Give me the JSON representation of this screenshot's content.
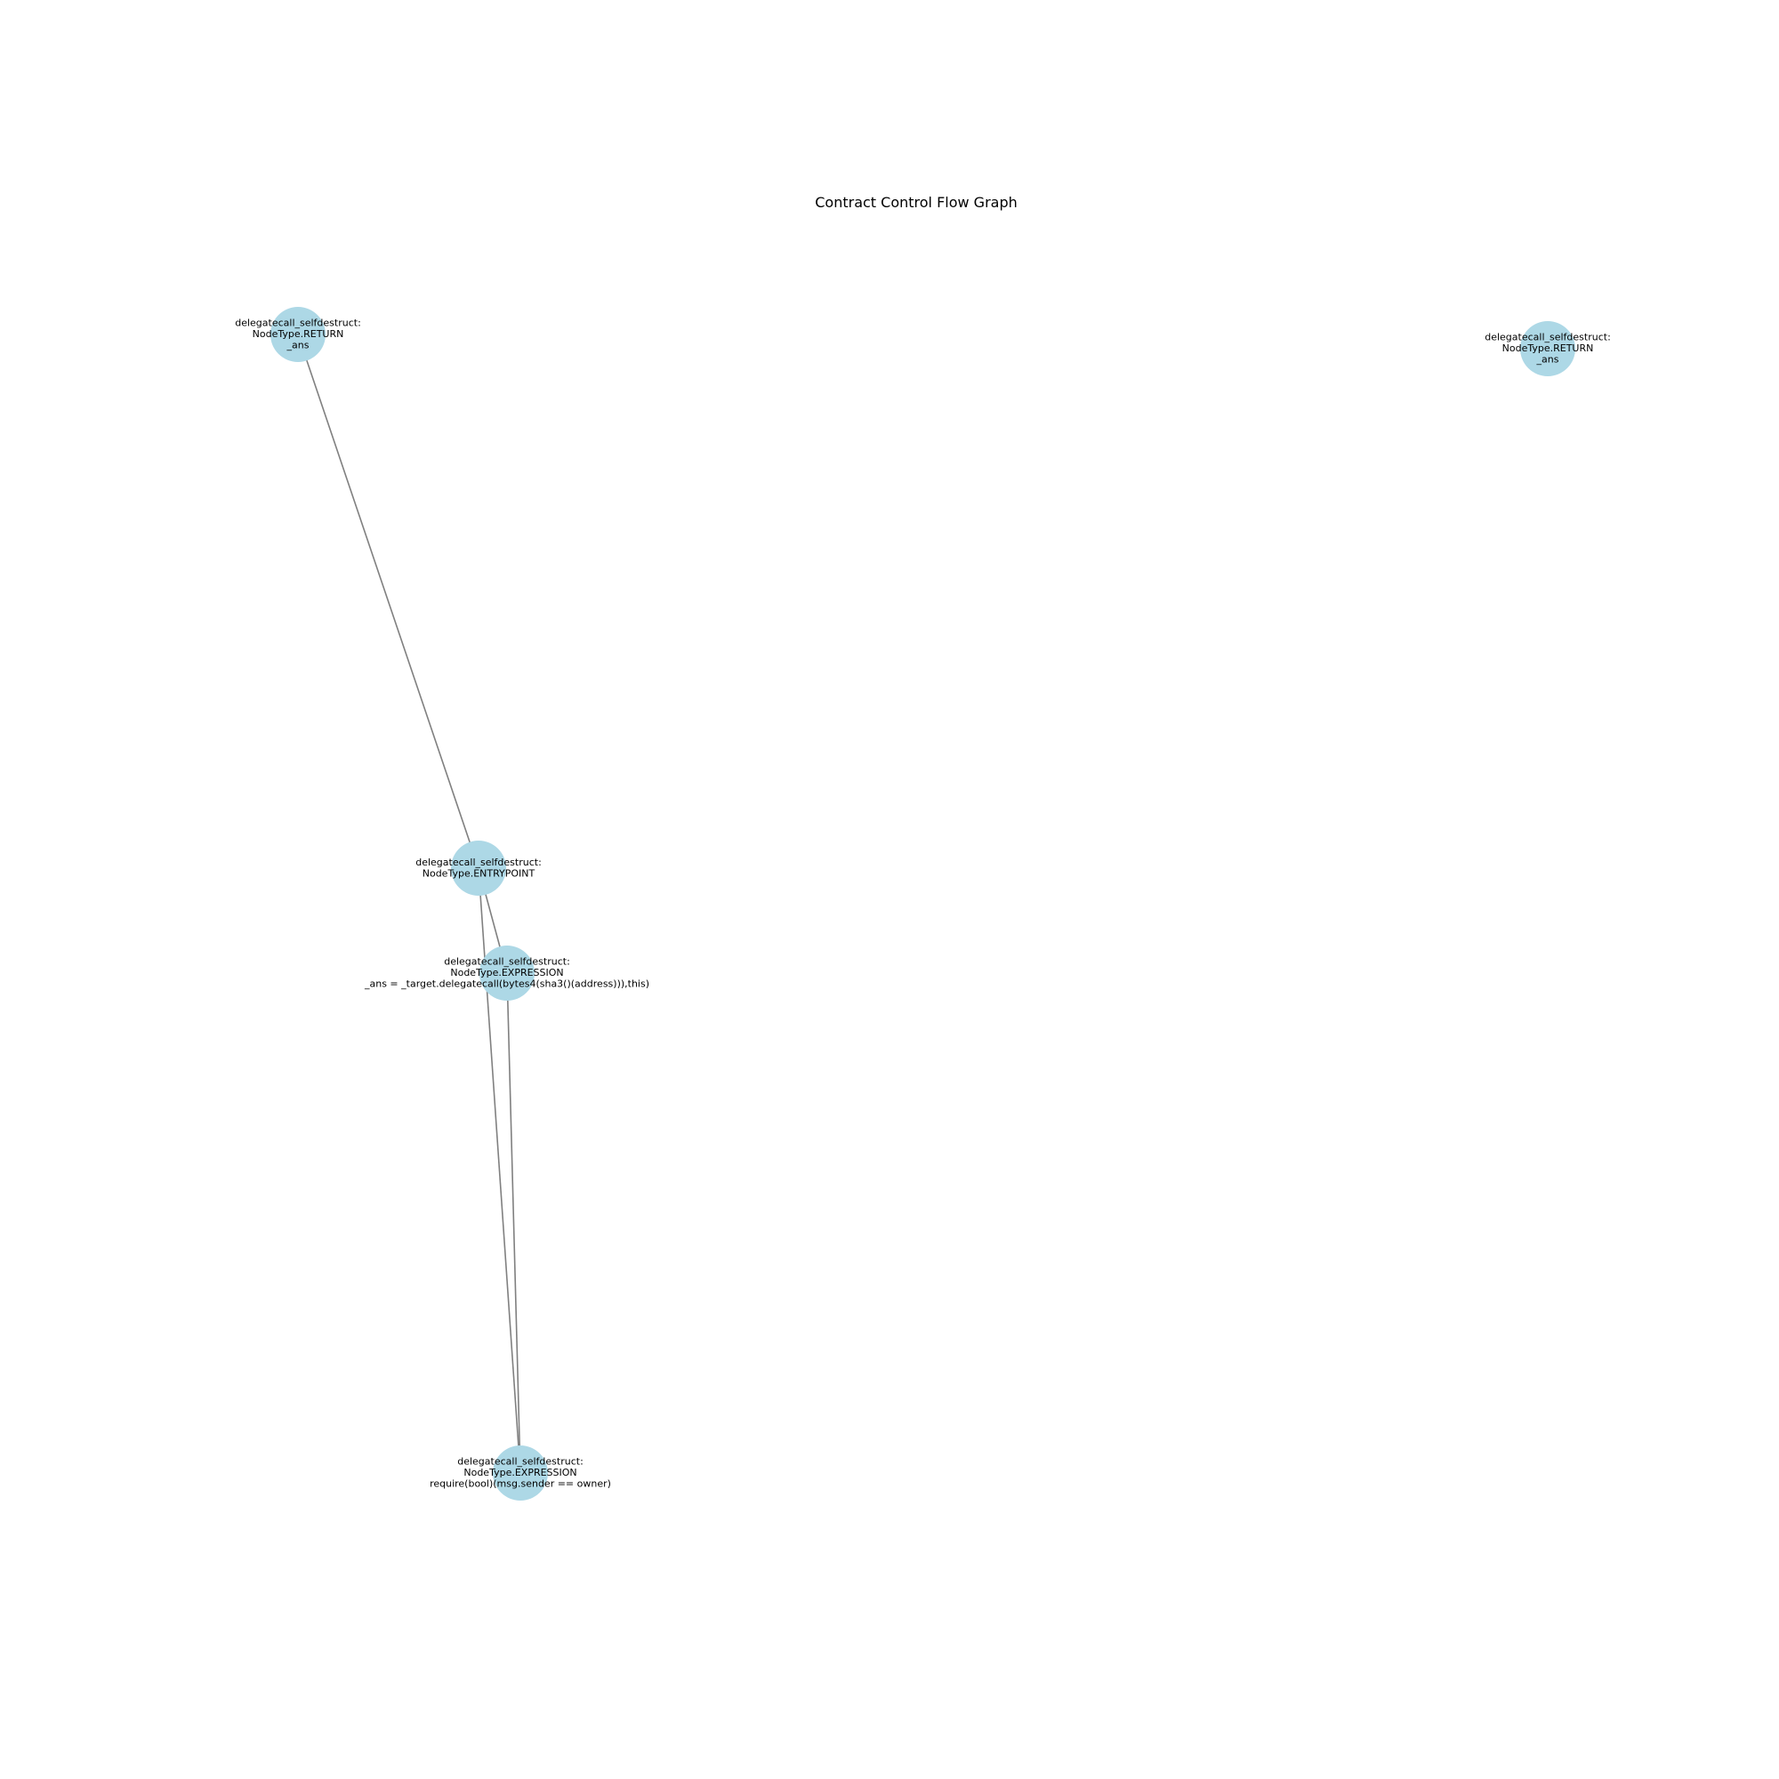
{
  "title": "Contract Control Flow Graph",
  "colors": {
    "node_fill": "#add8e6",
    "edge": "#808080",
    "background": "#ffffff",
    "text": "#000000"
  },
  "nodes": [
    {
      "id": "return_1",
      "lines": [
        "delegatecall_selfdestruct:",
        "NodeType.RETURN",
        "_ans"
      ]
    },
    {
      "id": "return_2",
      "lines": [
        "delegatecall_selfdestruct:",
        "NodeType.RETURN",
        "_ans"
      ]
    },
    {
      "id": "entrypoint",
      "lines": [
        "delegatecall_selfdestruct:",
        "NodeType.ENTRYPOINT"
      ]
    },
    {
      "id": "expr_delegatecall",
      "lines": [
        "delegatecall_selfdestruct:",
        "NodeType.EXPRESSION",
        "_ans = _target.delegatecall(bytes4(sha3()(address))),this)"
      ]
    },
    {
      "id": "expr_require",
      "lines": [
        "delegatecall_selfdestruct:",
        "NodeType.EXPRESSION",
        "require(bool)(msg.sender == owner)"
      ]
    }
  ],
  "edges": [
    {
      "from": "return_1",
      "to": "entrypoint"
    },
    {
      "from": "entrypoint",
      "to": "expr_delegatecall"
    },
    {
      "from": "entrypoint",
      "to": "expr_require"
    },
    {
      "from": "expr_delegatecall",
      "to": "expr_require"
    }
  ]
}
